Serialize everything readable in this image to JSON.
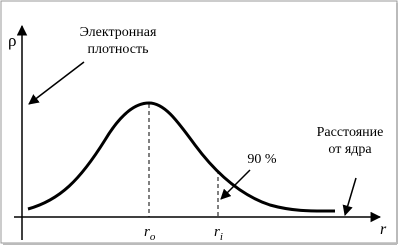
{
  "axes": {
    "y_label": "ρ",
    "x_label": "r"
  },
  "annotations": {
    "density": {
      "lines": [
        "Электронная",
        "плотность"
      ]
    },
    "percent": "90 %",
    "distance": {
      "lines": [
        "Расстояние",
        "от ядра"
      ]
    }
  },
  "markers": {
    "r_o": {
      "base": "r",
      "sub": "o"
    },
    "r_i": {
      "base": "r",
      "sub": "i"
    }
  }
}
